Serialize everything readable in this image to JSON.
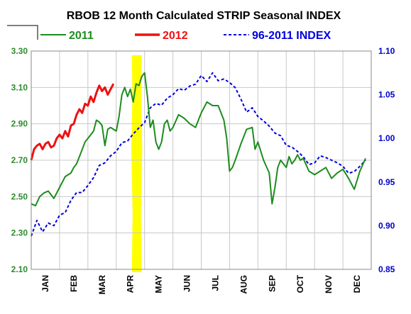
{
  "chart_data": {
    "type": "line",
    "title": "RBOB 12 Month Calculated STRIP Seasonal INDEX",
    "legend": {
      "placement": "top",
      "entries": [
        "2011",
        "2012",
        "96-2011 INDEX"
      ]
    },
    "x_months": [
      "JAN",
      "FEB",
      "MAR",
      "APR",
      "MAY",
      "JUN",
      "JUL",
      "AUG",
      "SEP",
      "OCT",
      "NOV",
      "DEC"
    ],
    "left_axis": {
      "ylim": [
        2.1,
        3.3
      ],
      "ticks": [
        "2.10",
        "2.30",
        "2.50",
        "2.70",
        "2.90",
        "3.10",
        "3.30"
      ],
      "color": "#2e8b2e"
    },
    "right_axis": {
      "ylim": [
        0.85,
        1.1
      ],
      "ticks": [
        "0.85",
        "0.90",
        "0.95",
        "1.00",
        "1.05",
        "1.10"
      ],
      "color": "#0000cc"
    },
    "highlight": {
      "x_range": [
        3.55,
        3.9
      ],
      "color": "#ffff00"
    },
    "series": [
      {
        "name": "2011",
        "axis": "left",
        "color": "#1e8c1e",
        "style": "solid",
        "x": [
          0,
          0.15,
          0.3,
          0.45,
          0.6,
          0.8,
          1.0,
          1.2,
          1.4,
          1.5,
          1.6,
          1.75,
          1.9,
          2.0,
          2.1,
          2.2,
          2.3,
          2.4,
          2.5,
          2.6,
          2.7,
          2.8,
          2.9,
          3.0,
          3.1,
          3.2,
          3.3,
          3.4,
          3.5,
          3.6,
          3.7,
          3.8,
          3.9,
          4.0,
          4.1,
          4.2,
          4.3,
          4.4,
          4.5,
          4.6,
          4.7,
          4.8,
          4.9,
          5.0,
          5.2,
          5.4,
          5.6,
          5.8,
          6.0,
          6.2,
          6.4,
          6.6,
          6.8,
          6.9,
          7.0,
          7.1,
          7.2,
          7.4,
          7.6,
          7.8,
          7.9,
          8.0,
          8.2,
          8.4,
          8.5,
          8.6,
          8.7,
          8.8,
          8.9,
          9.0,
          9.1,
          9.2,
          9.3,
          9.4,
          9.5,
          9.6,
          9.8,
          10.0,
          10.2,
          10.4,
          10.6,
          10.8,
          11.0,
          11.2,
          11.4,
          11.6,
          11.8
        ],
        "values": [
          2.46,
          2.45,
          2.5,
          2.52,
          2.53,
          2.49,
          2.55,
          2.61,
          2.63,
          2.66,
          2.68,
          2.74,
          2.8,
          2.82,
          2.84,
          2.86,
          2.92,
          2.91,
          2.89,
          2.78,
          2.87,
          2.88,
          2.87,
          2.86,
          2.94,
          3.06,
          3.1,
          3.05,
          3.09,
          3.02,
          3.12,
          3.11,
          3.16,
          3.18,
          3.05,
          2.88,
          2.92,
          2.8,
          2.76,
          2.8,
          2.9,
          2.92,
          2.86,
          2.88,
          2.95,
          2.93,
          2.9,
          2.88,
          2.96,
          3.02,
          3.0,
          3.0,
          2.92,
          2.82,
          2.64,
          2.66,
          2.7,
          2.79,
          2.87,
          2.88,
          2.76,
          2.8,
          2.7,
          2.63,
          2.46,
          2.55,
          2.66,
          2.7,
          2.68,
          2.66,
          2.72,
          2.68,
          2.7,
          2.73,
          2.7,
          2.71,
          2.64,
          2.62,
          2.64,
          2.66,
          2.6,
          2.63,
          2.65,
          2.6,
          2.54,
          2.64,
          2.71
        ]
      },
      {
        "name": "2012",
        "axis": "left",
        "color": "#ee1111",
        "style": "solid",
        "x": [
          0,
          0.1,
          0.2,
          0.3,
          0.4,
          0.5,
          0.6,
          0.7,
          0.8,
          0.9,
          1.0,
          1.1,
          1.2,
          1.3,
          1.4,
          1.5,
          1.6,
          1.7,
          1.8,
          1.9,
          2.0,
          2.1,
          2.2,
          2.3,
          2.4,
          2.5,
          2.6,
          2.7,
          2.8,
          2.9
        ],
        "values": [
          2.7,
          2.76,
          2.78,
          2.79,
          2.76,
          2.79,
          2.8,
          2.77,
          2.78,
          2.82,
          2.84,
          2.82,
          2.86,
          2.83,
          2.89,
          2.9,
          2.95,
          2.98,
          2.96,
          3.01,
          3.0,
          3.05,
          3.02,
          3.07,
          3.11,
          3.08,
          3.1,
          3.06,
          3.09,
          3.12
        ]
      },
      {
        "name": "96-2011 INDEX",
        "axis": "right",
        "color": "#0000dd",
        "style": "dashed",
        "x": [
          0,
          0.2,
          0.4,
          0.6,
          0.8,
          1.0,
          1.2,
          1.4,
          1.6,
          1.8,
          2.0,
          2.2,
          2.4,
          2.6,
          2.8,
          3.0,
          3.2,
          3.4,
          3.6,
          3.8,
          4.0,
          4.2,
          4.4,
          4.6,
          4.8,
          5.0,
          5.2,
          5.4,
          5.6,
          5.8,
          6.0,
          6.2,
          6.4,
          6.6,
          6.8,
          7.0,
          7.2,
          7.4,
          7.6,
          7.8,
          8.0,
          8.2,
          8.4,
          8.6,
          8.8,
          9.0,
          9.2,
          9.4,
          9.6,
          9.8,
          10.0,
          10.2,
          10.4,
          10.6,
          10.8,
          11.0,
          11.2,
          11.4,
          11.6,
          11.8
        ],
        "values": [
          0.888,
          0.906,
          0.893,
          0.903,
          0.9,
          0.912,
          0.915,
          0.929,
          0.938,
          0.938,
          0.946,
          0.955,
          0.969,
          0.972,
          0.98,
          0.985,
          0.995,
          0.997,
          1.005,
          1.012,
          1.018,
          1.035,
          1.04,
          1.038,
          1.046,
          1.05,
          1.057,
          1.055,
          1.06,
          1.062,
          1.072,
          1.065,
          1.075,
          1.066,
          1.068,
          1.064,
          1.058,
          1.045,
          1.03,
          1.035,
          1.025,
          1.02,
          1.014,
          1.006,
          1.003,
          0.992,
          0.99,
          0.985,
          0.979,
          0.97,
          0.972,
          0.98,
          0.978,
          0.975,
          0.972,
          0.968,
          0.96,
          0.962,
          0.968,
          0.975
        ]
      }
    ]
  }
}
